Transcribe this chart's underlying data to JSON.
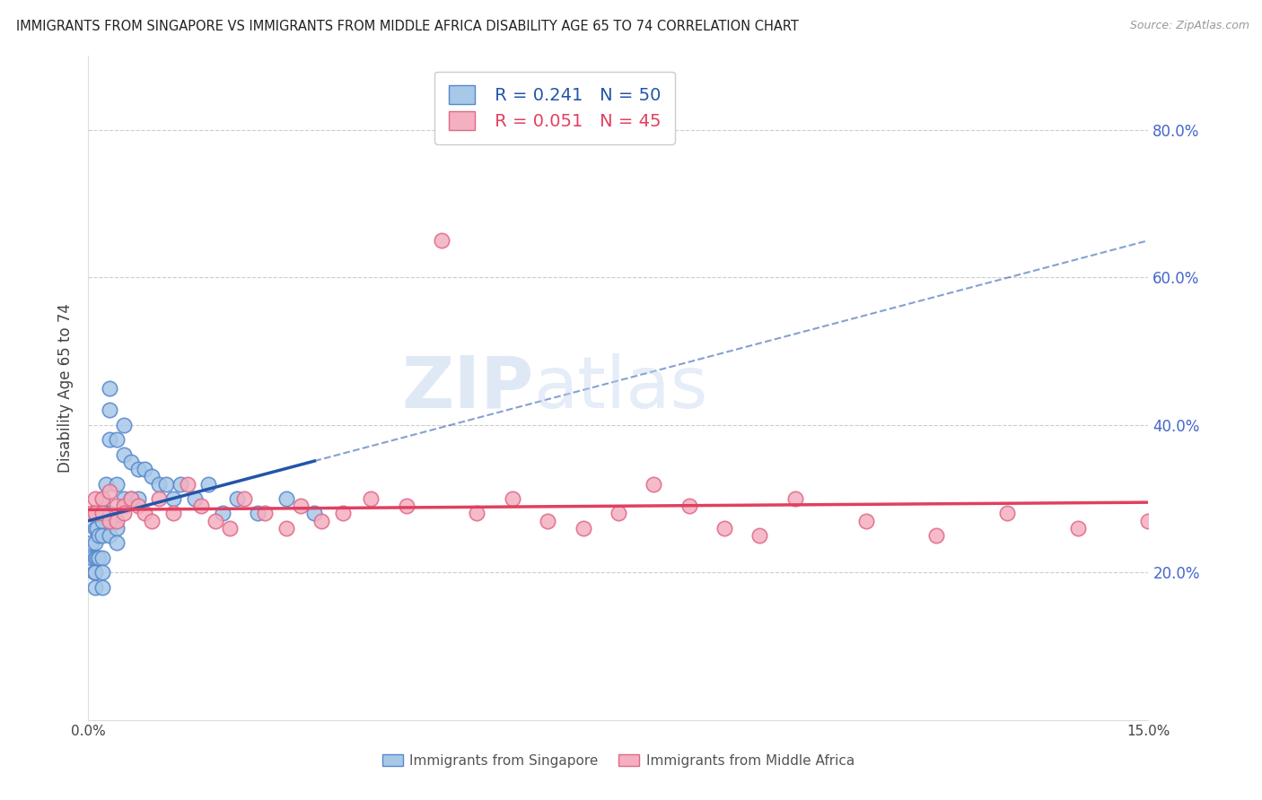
{
  "title": "IMMIGRANTS FROM SINGAPORE VS IMMIGRANTS FROM MIDDLE AFRICA DISABILITY AGE 65 TO 74 CORRELATION CHART",
  "source": "Source: ZipAtlas.com",
  "ylabel": "Disability Age 65 to 74",
  "watermark": "ZIPatlas",
  "xlim": [
    0.0,
    0.15
  ],
  "ylim": [
    0.0,
    0.9
  ],
  "singapore_color": "#a8c8e8",
  "singapore_edge": "#5588cc",
  "middle_africa_color": "#f4b0c0",
  "middle_africa_edge": "#e06888",
  "singapore_line_color": "#2255aa",
  "middle_africa_line_color": "#e04060",
  "legend_R_singapore": "0.241",
  "legend_N_singapore": "50",
  "legend_R_middle_africa": "0.051",
  "legend_N_middle_africa": "45",
  "sg_x": [
    0.0005,
    0.0005,
    0.0008,
    0.001,
    0.001,
    0.001,
    0.001,
    0.001,
    0.0012,
    0.0012,
    0.0015,
    0.0015,
    0.0015,
    0.002,
    0.002,
    0.002,
    0.002,
    0.002,
    0.002,
    0.0025,
    0.0025,
    0.003,
    0.003,
    0.003,
    0.003,
    0.003,
    0.004,
    0.004,
    0.004,
    0.004,
    0.005,
    0.005,
    0.005,
    0.006,
    0.006,
    0.007,
    0.007,
    0.008,
    0.009,
    0.01,
    0.011,
    0.012,
    0.013,
    0.015,
    0.017,
    0.019,
    0.021,
    0.024,
    0.028,
    0.032
  ],
  "sg_y": [
    0.24,
    0.22,
    0.2,
    0.26,
    0.24,
    0.22,
    0.2,
    0.18,
    0.26,
    0.22,
    0.28,
    0.25,
    0.22,
    0.3,
    0.27,
    0.25,
    0.22,
    0.2,
    0.18,
    0.32,
    0.28,
    0.45,
    0.42,
    0.38,
    0.28,
    0.25,
    0.38,
    0.32,
    0.26,
    0.24,
    0.4,
    0.36,
    0.3,
    0.35,
    0.3,
    0.34,
    0.3,
    0.34,
    0.33,
    0.32,
    0.32,
    0.3,
    0.32,
    0.3,
    0.32,
    0.28,
    0.3,
    0.28,
    0.3,
    0.28
  ],
  "ma_x": [
    0.0005,
    0.001,
    0.001,
    0.002,
    0.002,
    0.003,
    0.003,
    0.004,
    0.004,
    0.005,
    0.005,
    0.006,
    0.007,
    0.008,
    0.009,
    0.01,
    0.012,
    0.014,
    0.016,
    0.018,
    0.02,
    0.022,
    0.025,
    0.028,
    0.03,
    0.033,
    0.036,
    0.04,
    0.045,
    0.05,
    0.055,
    0.06,
    0.065,
    0.07,
    0.075,
    0.08,
    0.085,
    0.09,
    0.095,
    0.1,
    0.11,
    0.12,
    0.13,
    0.14,
    0.15
  ],
  "ma_y": [
    0.28,
    0.3,
    0.28,
    0.3,
    0.28,
    0.31,
    0.27,
    0.29,
    0.27,
    0.29,
    0.28,
    0.3,
    0.29,
    0.28,
    0.27,
    0.3,
    0.28,
    0.32,
    0.29,
    0.27,
    0.26,
    0.3,
    0.28,
    0.26,
    0.29,
    0.27,
    0.28,
    0.3,
    0.29,
    0.65,
    0.28,
    0.3,
    0.27,
    0.26,
    0.28,
    0.32,
    0.29,
    0.26,
    0.25,
    0.3,
    0.27,
    0.25,
    0.28,
    0.26,
    0.27
  ]
}
